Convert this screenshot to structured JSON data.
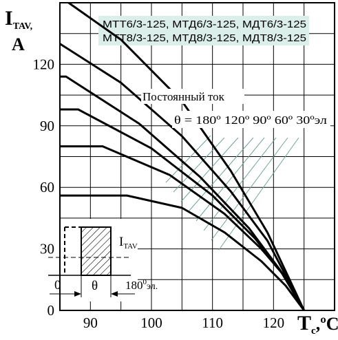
{
  "chart_data": {
    "type": "line",
    "ylabel_main": "I",
    "ylabel_sub": "TAV,",
    "ylabel_unit": "A",
    "xlabel_main": "T",
    "xlabel_sub": "c",
    "xlabel_unit": ",ºC",
    "xlim": [
      85,
      130
    ],
    "ylim": [
      0,
      150
    ],
    "x_ticks": [
      90,
      100,
      110,
      120
    ],
    "y_ticks": [
      0,
      30,
      60,
      90,
      120
    ],
    "grid": true,
    "legend_box": {
      "line1": "МТТ6/3-125, МТД6/3-125, МДТ6/3-125",
      "line2": "МТТ8/3-125, МТД8/3-125, МДТ8/3-125",
      "color": "#dbeee9"
    },
    "annotation_dc": "Постоянный ток",
    "annotation_theta": "θ = 180º 120º 90º 60º 30ºэл",
    "series": [
      {
        "points": [
          [
            85,
            56
          ],
          [
            96,
            56
          ],
          [
            105,
            50
          ],
          [
            112,
            38
          ],
          [
            118,
            24
          ],
          [
            122,
            12
          ],
          [
            125,
            0
          ]
        ]
      },
      {
        "points": [
          [
            85,
            80
          ],
          [
            92,
            80
          ],
          [
            103,
            66
          ],
          [
            112,
            47
          ],
          [
            118,
            30
          ],
          [
            122,
            16
          ],
          [
            125,
            0
          ]
        ]
      },
      {
        "points": [
          [
            85,
            98
          ],
          [
            88,
            98
          ],
          [
            100,
            79
          ],
          [
            110,
            56
          ],
          [
            117,
            35
          ],
          [
            122,
            16
          ],
          [
            125,
            0
          ]
        ]
      },
      {
        "points": [
          [
            85,
            114
          ],
          [
            86,
            114
          ],
          [
            98,
            91
          ],
          [
            108,
            65
          ],
          [
            116,
            40
          ],
          [
            121,
            20
          ],
          [
            125,
            0
          ]
        ]
      },
      {
        "points": [
          [
            85,
            130
          ],
          [
            95,
            111
          ],
          [
            105,
            85
          ],
          [
            113,
            58
          ],
          [
            119,
            34
          ],
          [
            125,
            0
          ]
        ]
      },
      {
        "points": [
          [
            85,
            153
          ],
          [
            95,
            132
          ],
          [
            105,
            102
          ],
          [
            113,
            68
          ],
          [
            119,
            38
          ],
          [
            125,
            0
          ]
        ]
      }
    ],
    "inset": {
      "i_label": "I",
      "i_sub": "TAV",
      "zero_label": "0",
      "theta_label": "θ",
      "end_label": "180",
      "end_sup": "0",
      "end_suffix": "эл."
    }
  }
}
